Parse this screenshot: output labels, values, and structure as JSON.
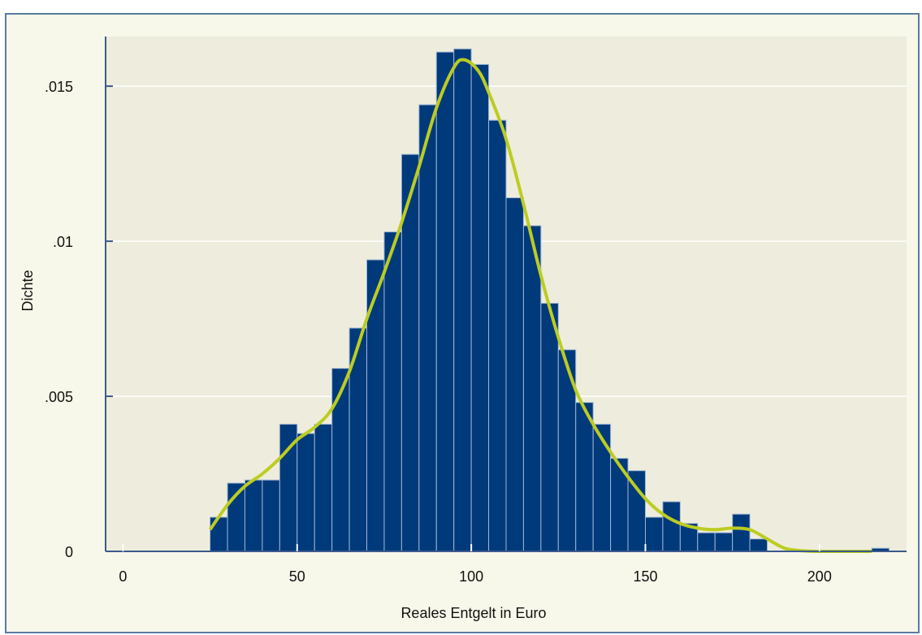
{
  "chart_data": {
    "type": "bar",
    "subtype": "histogram with density curve",
    "xlabel": "Reales Entgelt in Euro",
    "ylabel": "Dichte",
    "xlim": [
      -5,
      225
    ],
    "ylim": [
      0,
      0.0166
    ],
    "x_ticks": [
      0,
      50,
      100,
      150,
      200
    ],
    "x_tick_labels": [
      "0",
      "50",
      "100",
      "150",
      "200"
    ],
    "y_ticks": [
      0,
      0.005,
      0.01,
      0.015
    ],
    "y_tick_labels": [
      "0",
      ".005",
      ".01",
      ".015"
    ],
    "grid": "horizontal",
    "bin_width": 5,
    "bins": [
      {
        "x0": 25,
        "value": 0.0011
      },
      {
        "x0": 30,
        "value": 0.0022
      },
      {
        "x0": 35,
        "value": 0.0023
      },
      {
        "x0": 40,
        "value": 0.0023
      },
      {
        "x0": 45,
        "value": 0.0041
      },
      {
        "x0": 50,
        "value": 0.0038
      },
      {
        "x0": 55,
        "value": 0.0041
      },
      {
        "x0": 60,
        "value": 0.0059
      },
      {
        "x0": 65,
        "value": 0.0072
      },
      {
        "x0": 70,
        "value": 0.0094
      },
      {
        "x0": 75,
        "value": 0.0103
      },
      {
        "x0": 80,
        "value": 0.0128
      },
      {
        "x0": 85,
        "value": 0.0144
      },
      {
        "x0": 90,
        "value": 0.0161
      },
      {
        "x0": 95,
        "value": 0.0162
      },
      {
        "x0": 100,
        "value": 0.0157
      },
      {
        "x0": 105,
        "value": 0.0139
      },
      {
        "x0": 110,
        "value": 0.0114
      },
      {
        "x0": 115,
        "value": 0.0105
      },
      {
        "x0": 120,
        "value": 0.008
      },
      {
        "x0": 125,
        "value": 0.0065
      },
      {
        "x0": 130,
        "value": 0.0048
      },
      {
        "x0": 135,
        "value": 0.0041
      },
      {
        "x0": 140,
        "value": 0.003
      },
      {
        "x0": 145,
        "value": 0.0026
      },
      {
        "x0": 150,
        "value": 0.0011
      },
      {
        "x0": 155,
        "value": 0.0016
      },
      {
        "x0": 160,
        "value": 0.0009
      },
      {
        "x0": 165,
        "value": 0.0006
      },
      {
        "x0": 170,
        "value": 0.0006
      },
      {
        "x0": 175,
        "value": 0.0012
      },
      {
        "x0": 180,
        "value": 0.0004
      },
      {
        "x0": 215,
        "value": 0.0001
      }
    ],
    "density_curve": [
      {
        "x": 25,
        "y": 0.0007
      },
      {
        "x": 30,
        "y": 0.0015
      },
      {
        "x": 35,
        "y": 0.0021
      },
      {
        "x": 40,
        "y": 0.0025
      },
      {
        "x": 45,
        "y": 0.003
      },
      {
        "x": 50,
        "y": 0.0036
      },
      {
        "x": 55,
        "y": 0.004
      },
      {
        "x": 60,
        "y": 0.0046
      },
      {
        "x": 65,
        "y": 0.0058
      },
      {
        "x": 70,
        "y": 0.0075
      },
      {
        "x": 75,
        "y": 0.009
      },
      {
        "x": 80,
        "y": 0.0106
      },
      {
        "x": 85,
        "y": 0.0124
      },
      {
        "x": 90,
        "y": 0.0143
      },
      {
        "x": 95,
        "y": 0.0156
      },
      {
        "x": 98,
        "y": 0.01585
      },
      {
        "x": 102,
        "y": 0.0155
      },
      {
        "x": 105,
        "y": 0.0148
      },
      {
        "x": 110,
        "y": 0.0133
      },
      {
        "x": 115,
        "y": 0.0112
      },
      {
        "x": 120,
        "y": 0.0089
      },
      {
        "x": 125,
        "y": 0.0069
      },
      {
        "x": 130,
        "y": 0.0052
      },
      {
        "x": 135,
        "y": 0.0041
      },
      {
        "x": 140,
        "y": 0.0032
      },
      {
        "x": 145,
        "y": 0.0024
      },
      {
        "x": 150,
        "y": 0.0017
      },
      {
        "x": 155,
        "y": 0.0012
      },
      {
        "x": 160,
        "y": 0.0009
      },
      {
        "x": 165,
        "y": 0.00075
      },
      {
        "x": 170,
        "y": 0.0007
      },
      {
        "x": 175,
        "y": 0.00075
      },
      {
        "x": 180,
        "y": 0.0007
      },
      {
        "x": 185,
        "y": 0.0004
      },
      {
        "x": 190,
        "y": 0.0001
      },
      {
        "x": 195,
        "y": 2e-05
      },
      {
        "x": 200,
        "y": 0.0
      },
      {
        "x": 215,
        "y": 0.0
      }
    ],
    "colors": {
      "bar_fill": "#003a7a",
      "bar_edge": "#9eb4d2",
      "curve": "#bccc22",
      "plot_background": "#eeeddd",
      "outer_background": "#f8f8ea",
      "grid": "#ffffff",
      "axis": "#3b5a8d",
      "frame": "#5b7aa5"
    }
  }
}
